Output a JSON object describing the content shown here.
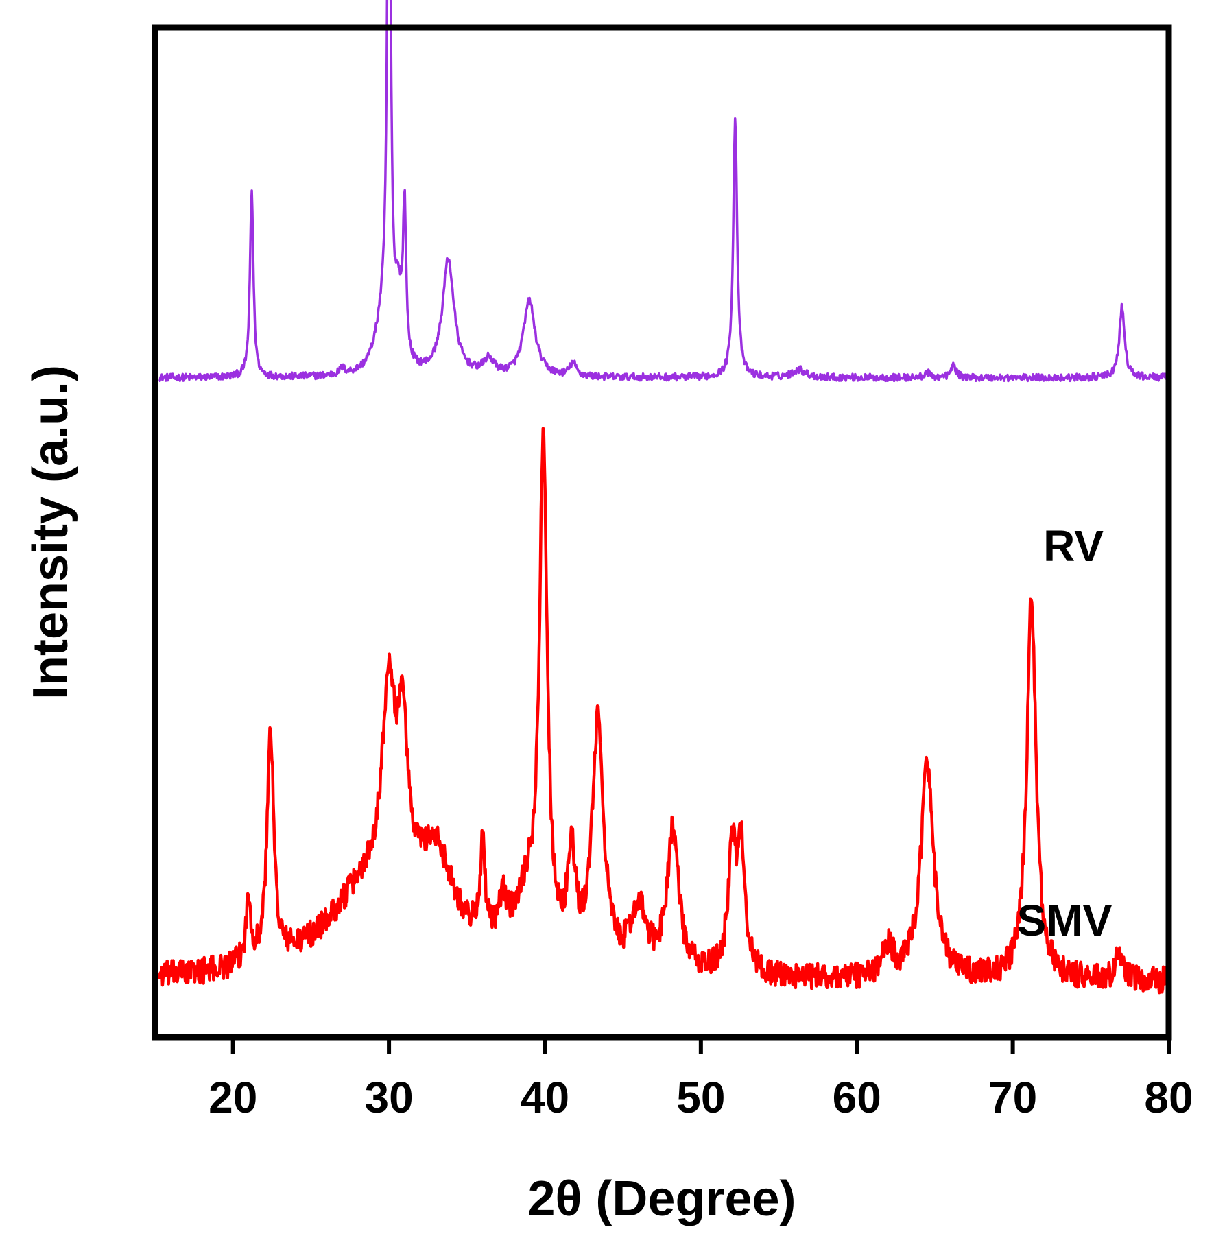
{
  "chart_data": {
    "type": "line",
    "title": "",
    "xlabel": "2θ (Degree)",
    "ylabel": "Intensity (a.u.)",
    "xlim": [
      15,
      80
    ],
    "ylim": [
      0,
      100
    ],
    "x_ticks": [
      20,
      30,
      40,
      50,
      60,
      70,
      80
    ],
    "x_tick_labels": [
      "20",
      "30",
      "40",
      "50",
      "60",
      "70",
      "80"
    ],
    "y_ticks": [],
    "grid": false,
    "legend": "none (series labeled inline)",
    "series": [
      {
        "name": "RV",
        "label": "RV",
        "color": "#9B30E0",
        "baseline": 65.3,
        "noise": 0.35,
        "peaks": [
          {
            "x": 21.2,
            "h": 18.5,
            "w": 0.13
          },
          {
            "x": 27.0,
            "h": 0.6,
            "w": 0.2
          },
          {
            "x": 30.0,
            "h": 59.0,
            "w": 0.13
          },
          {
            "x": 29.6,
            "h": 5.0,
            "w": 0.6
          },
          {
            "x": 30.6,
            "h": 6.0,
            "w": 0.25
          },
          {
            "x": 31.0,
            "h": 15.0,
            "w": 0.12
          },
          {
            "x": 33.8,
            "h": 11.5,
            "w": 0.45
          },
          {
            "x": 36.4,
            "h": 1.5,
            "w": 0.4
          },
          {
            "x": 39.0,
            "h": 7.5,
            "w": 0.45
          },
          {
            "x": 41.8,
            "h": 1.3,
            "w": 0.25
          },
          {
            "x": 52.2,
            "h": 25.5,
            "w": 0.15
          },
          {
            "x": 56.3,
            "h": 0.8,
            "w": 0.5
          },
          {
            "x": 64.5,
            "h": 0.5,
            "w": 0.2
          },
          {
            "x": 66.2,
            "h": 1.2,
            "w": 0.2
          },
          {
            "x": 77.0,
            "h": 7.0,
            "w": 0.2
          }
        ]
      },
      {
        "name": "SMV",
        "label": "SMV",
        "color": "#FF0000",
        "baseline": 5.5,
        "noise": 1.3,
        "peaks": [
          {
            "x": 21.0,
            "h": 6.0,
            "w": 0.2
          },
          {
            "x": 22.4,
            "h": 23.0,
            "w": 0.25
          },
          {
            "x": 29.0,
            "h": 9.0,
            "w": 3.5
          },
          {
            "x": 30.0,
            "h": 20.0,
            "w": 0.5
          },
          {
            "x": 30.9,
            "h": 15.0,
            "w": 0.35
          },
          {
            "x": 33.0,
            "h": 9.0,
            "w": 1.5
          },
          {
            "x": 36.0,
            "h": 9.0,
            "w": 0.2
          },
          {
            "x": 37.3,
            "h": 4.0,
            "w": 0.3
          },
          {
            "x": 38.8,
            "h": 6.0,
            "w": 1.0
          },
          {
            "x": 39.9,
            "h": 50.0,
            "w": 0.3
          },
          {
            "x": 41.7,
            "h": 10.0,
            "w": 0.3
          },
          {
            "x": 43.4,
            "h": 24.0,
            "w": 0.45
          },
          {
            "x": 46.0,
            "h": 6.0,
            "w": 0.6
          },
          {
            "x": 48.2,
            "h": 14.0,
            "w": 0.45
          },
          {
            "x": 52.0,
            "h": 12.0,
            "w": 0.3
          },
          {
            "x": 52.6,
            "h": 12.0,
            "w": 0.3
          },
          {
            "x": 62.0,
            "h": 3.0,
            "w": 0.4
          },
          {
            "x": 64.5,
            "h": 21.0,
            "w": 0.5
          },
          {
            "x": 71.2,
            "h": 38.0,
            "w": 0.35
          },
          {
            "x": 76.8,
            "h": 3.0,
            "w": 0.2
          }
        ]
      }
    ]
  }
}
